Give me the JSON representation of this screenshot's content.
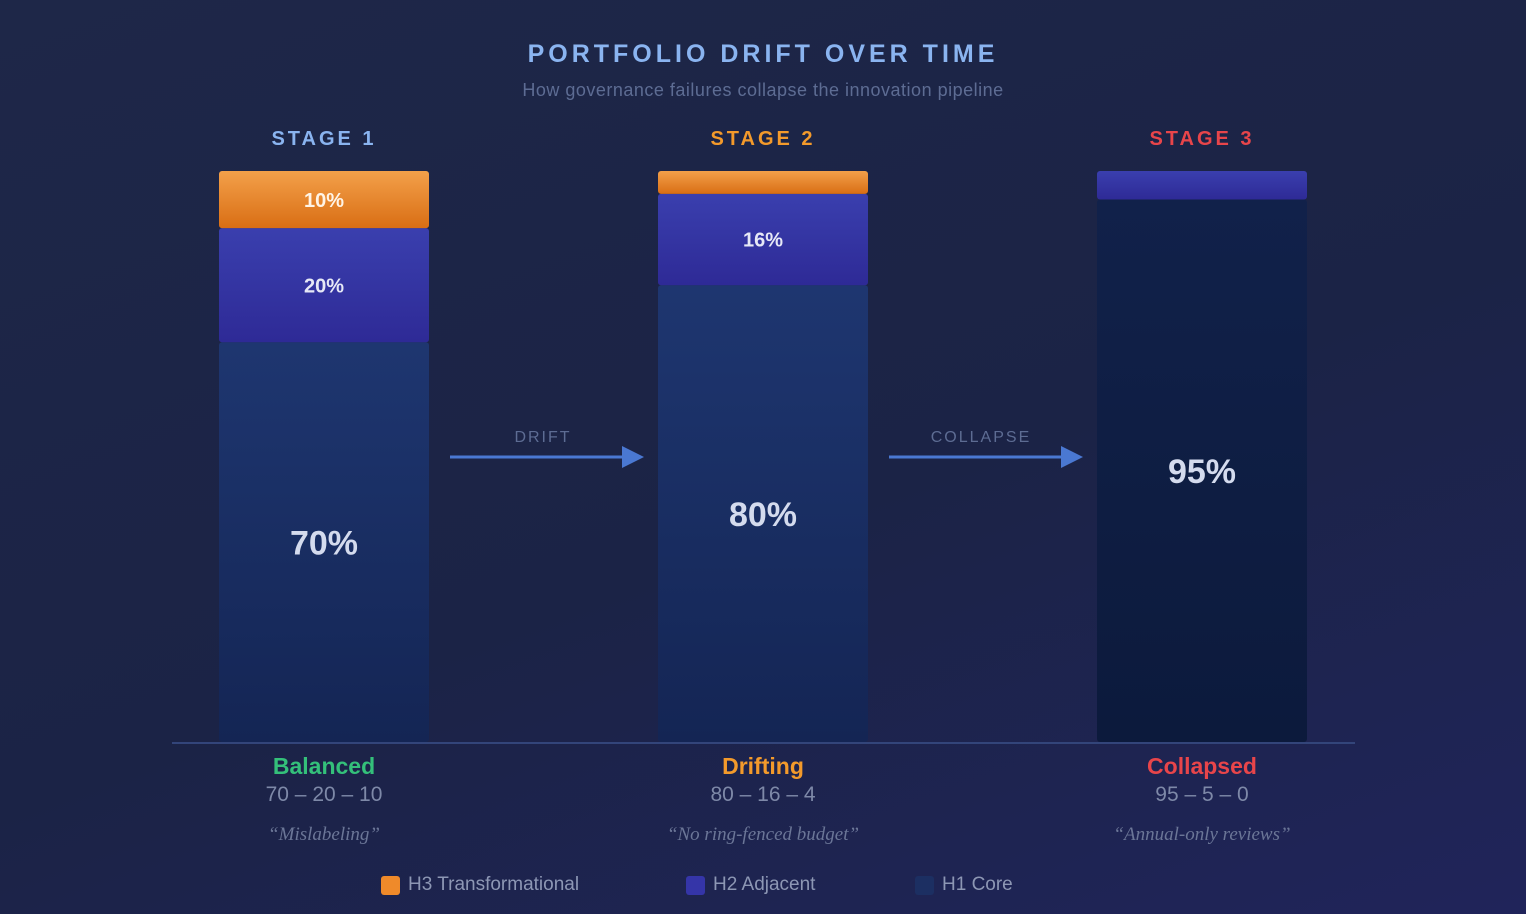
{
  "title": "PORTFOLIO DRIFT OVER TIME",
  "subtitle": "How governance failures collapse the innovation pipeline",
  "stages": [
    {
      "label": "STAGE 1",
      "color": "#8ab4f0",
      "status": "Balanced",
      "status_color": "#34c07a",
      "ratio": "70 – 20 – 10",
      "quote": "“Mislabeling”"
    },
    {
      "label": "STAGE 2",
      "color": "#f39a2b",
      "status": "Drifting",
      "status_color": "#f39a2b",
      "ratio": "80 – 16 – 4",
      "quote": "“No ring-fenced budget”"
    },
    {
      "label": "STAGE 3",
      "color": "#e8454a",
      "status": "Collapsed",
      "status_color": "#e8454a",
      "ratio": "95 – 5 – 0",
      "quote": "“Annual-only reviews”"
    }
  ],
  "transitions": [
    {
      "label": "DRIFT"
    },
    {
      "label": "COLLAPSE"
    }
  ],
  "legend": [
    {
      "label": "H3 Transformational",
      "color": "#ef8a2a"
    },
    {
      "label": "H2 Adjacent",
      "color": "#3535a8"
    },
    {
      "label": "H1 Core",
      "color": "#1c2f62"
    }
  ],
  "chart_data": {
    "type": "bar",
    "stacked": true,
    "categories": [
      "STAGE 1",
      "STAGE 2",
      "STAGE 3"
    ],
    "series": [
      {
        "name": "H1 Core",
        "values": [
          70,
          80,
          95
        ],
        "labels": [
          "70%",
          "80%",
          "95%"
        ],
        "color": "#1c2f62"
      },
      {
        "name": "H2 Adjacent",
        "values": [
          20,
          16,
          5
        ],
        "labels": [
          "20%",
          "16%",
          ""
        ],
        "color": "#3535a8"
      },
      {
        "name": "H3 Transformational",
        "values": [
          10,
          4,
          0
        ],
        "labels": [
          "10%",
          "",
          ""
        ],
        "color": "#ef8a2a"
      }
    ],
    "ylim": [
      0,
      100
    ],
    "legend_position": "bottom"
  }
}
